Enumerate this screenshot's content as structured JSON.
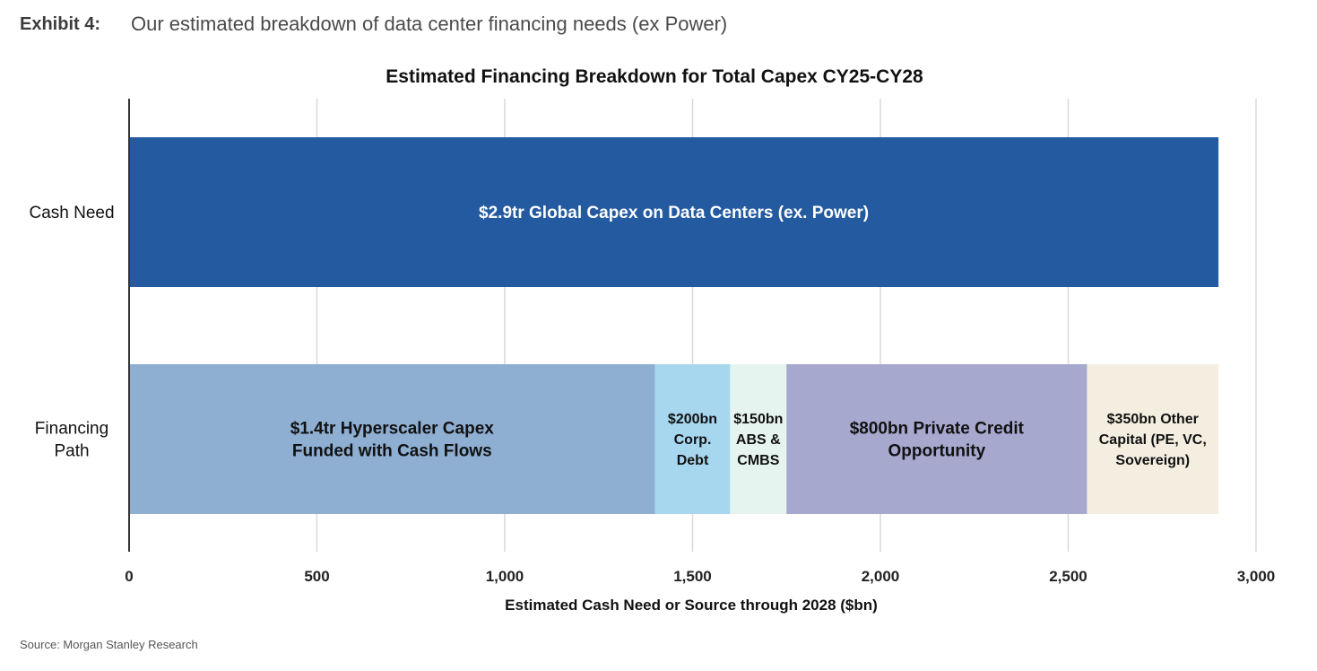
{
  "header": {
    "exhibit_label": "Exhibit 4:",
    "exhibit_title": "Our estimated breakdown of data center financing needs (ex Power)"
  },
  "source": "Source: Morgan Stanley Research",
  "chart_data": {
    "type": "bar",
    "orientation": "horizontal",
    "stacked": true,
    "title": "Estimated Financing Breakdown for Total Capex CY25-CY28",
    "xlabel": "Estimated Cash Need or Source through 2028 ($bn)",
    "ylabel": "",
    "xlim": [
      0,
      3000
    ],
    "xticks": [
      0,
      500,
      1000,
      1500,
      2000,
      2500,
      3000
    ],
    "xtick_labels": [
      "0",
      "500",
      "1,000",
      "1,500",
      "2,000",
      "2,500",
      "3,000"
    ],
    "grid": "vertical",
    "legend": "none",
    "categories": [
      "Cash Need",
      "Financing Path"
    ],
    "category_labels": [
      [
        "Cash Need"
      ],
      [
        "Financing",
        "Path"
      ]
    ],
    "bars": [
      {
        "category": "Cash Need",
        "segments": [
          {
            "value": 2900,
            "label": [
              "$2.9tr Global Capex on Data Centers (ex. Power)"
            ],
            "color": "#235aa0",
            "text_color": "#ffffff"
          }
        ]
      },
      {
        "category": "Financing Path",
        "segments": [
          {
            "value": 1400,
            "label": [
              "$1.4tr Hyperscaler Capex",
              "Funded with Cash Flows"
            ],
            "color": "#8eaed2",
            "text_color": "#111111"
          },
          {
            "value": 200,
            "label": [
              "$200bn",
              "Corp.",
              "Debt"
            ],
            "color": "#a6d7ef",
            "text_color": "#111111"
          },
          {
            "value": 150,
            "label": [
              "$150bn",
              "ABS &",
              "CMBS"
            ],
            "color": "#e6f4ef",
            "text_color": "#111111"
          },
          {
            "value": 800,
            "label": [
              "$800bn Private Credit",
              "Opportunity"
            ],
            "color": "#a6a8ce",
            "text_color": "#111111"
          },
          {
            "value": 350,
            "label": [
              "$350bn Other",
              "Capital (PE, VC,",
              "Sovereign)"
            ],
            "color": "#f3eee0",
            "text_color": "#111111"
          }
        ]
      }
    ]
  }
}
